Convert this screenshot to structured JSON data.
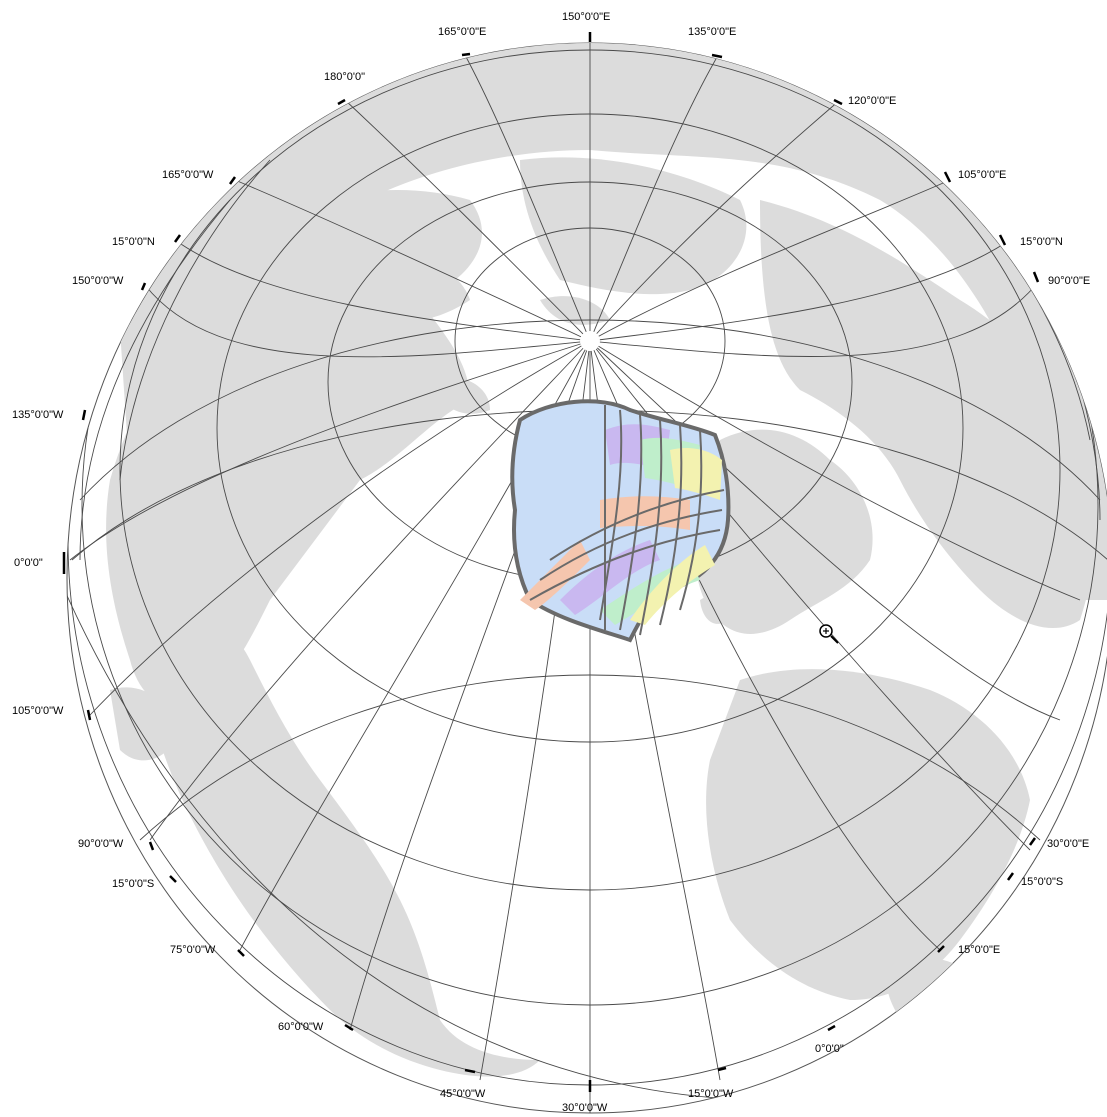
{
  "map": {
    "projection": "orthographic",
    "colors": {
      "background": "#ffffff",
      "globe": "#ffffff",
      "land": "#dcdcdc",
      "graticule": "#4a4a4a",
      "label": "#000000",
      "survey_outline": "#6a6a6a",
      "survey_fills": [
        "#c9ddf7",
        "#f5c6ae",
        "#c9b8f0",
        "#bfeecb",
        "#f3f2b0"
      ]
    },
    "graticule_labels": {
      "top": "150°0'0\"E",
      "top_r1": "135°0'0\"E",
      "top_r2": "120°0'0\"E",
      "top_r3": "105°0'0\"E",
      "right_n15": "15°0'0\"N",
      "right_90e": "90°0'0\"E",
      "right_30e": "30°0'0\"E",
      "right_s15": "15°0'0\"S",
      "right_15e": "15°0'0\"E",
      "bottom_r": "0°0'0\"",
      "bottom_15w": "15°0'0\"W",
      "bottom": "30°0'0\"W",
      "bottom_45w": "45°0'0\"W",
      "bottom_60w": "60°0'0\"W",
      "left_75w": "75°0'0\"W",
      "left_s15": "15°0'0\"S",
      "left_90w": "90°0'0\"W",
      "left_105w": "105°0'0\"W",
      "left_0": "0°0'0\"",
      "left_135w": "135°0'0\"W",
      "left_150w": "150°0'0\"W",
      "left_n15": "15°0'0\"N",
      "left_165w": "165°0'0\"W",
      "top_180": "180°0'0\"",
      "top_165e": "165°0'0\"E"
    },
    "cursor": "zoom-in-cursor-icon"
  }
}
